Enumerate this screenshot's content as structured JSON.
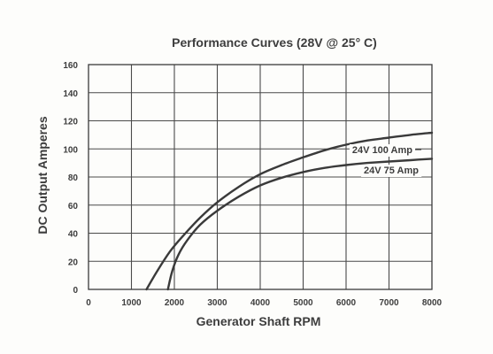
{
  "chart_data": {
    "type": "line",
    "title": "Performance Curves (28V @ 25° C)",
    "xlabel": "Generator Shaft RPM",
    "ylabel": "DC Output Amperes",
    "xlim": [
      0,
      8000
    ],
    "ylim": [
      0,
      160
    ],
    "x_ticks": [
      "0",
      "1000",
      "2000",
      "3000",
      "4000",
      "5000",
      "6000",
      "7000",
      "8000"
    ],
    "y_ticks": [
      "0",
      "20",
      "40",
      "60",
      "80",
      "100",
      "120",
      "140",
      "160"
    ],
    "grid": true,
    "series": [
      {
        "name": "24V 100 Amp",
        "x": [
          1350,
          1600,
          1900,
          2200,
          2600,
          3000,
          3500,
          4000,
          4500,
          5000,
          5500,
          6000,
          6500,
          7000,
          7500,
          8000
        ],
        "y": [
          0,
          13,
          27,
          38,
          51,
          62,
          73,
          82,
          88.5,
          94,
          99,
          103,
          106,
          108,
          110,
          111.5
        ]
      },
      {
        "name": "24V 75 Amp",
        "x": [
          1850,
          1950,
          2100,
          2300,
          2600,
          3000,
          3500,
          4000,
          4500,
          5000,
          5500,
          6000,
          6500,
          7000,
          7500,
          8000
        ],
        "y": [
          0,
          13,
          25,
          35,
          46,
          56,
          66,
          74,
          79.5,
          83.5,
          86.5,
          88.5,
          90,
          91,
          92,
          93
        ]
      }
    ]
  }
}
